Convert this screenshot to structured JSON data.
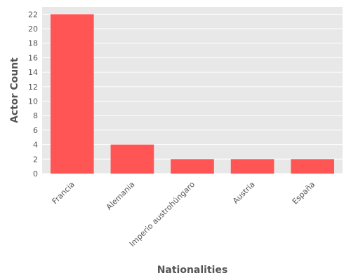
{
  "chart_data": {
    "type": "bar",
    "categories": [
      "Francia",
      "Alemania",
      "Imperio austrohúngaro",
      "Austria",
      "España"
    ],
    "values": [
      22,
      4,
      2,
      2,
      2
    ],
    "xlabel": "Nationalities",
    "ylabel": "Actor Count",
    "ylim": [
      0,
      23
    ],
    "yticks": [
      0,
      2,
      4,
      6,
      8,
      10,
      12,
      14,
      16,
      18,
      20,
      22
    ],
    "grid": true,
    "legend": "none",
    "colors": {
      "bar": "#ff5555",
      "panel_background": "#e8e8e8",
      "grid": "#ffffff",
      "text": "#555555"
    }
  }
}
